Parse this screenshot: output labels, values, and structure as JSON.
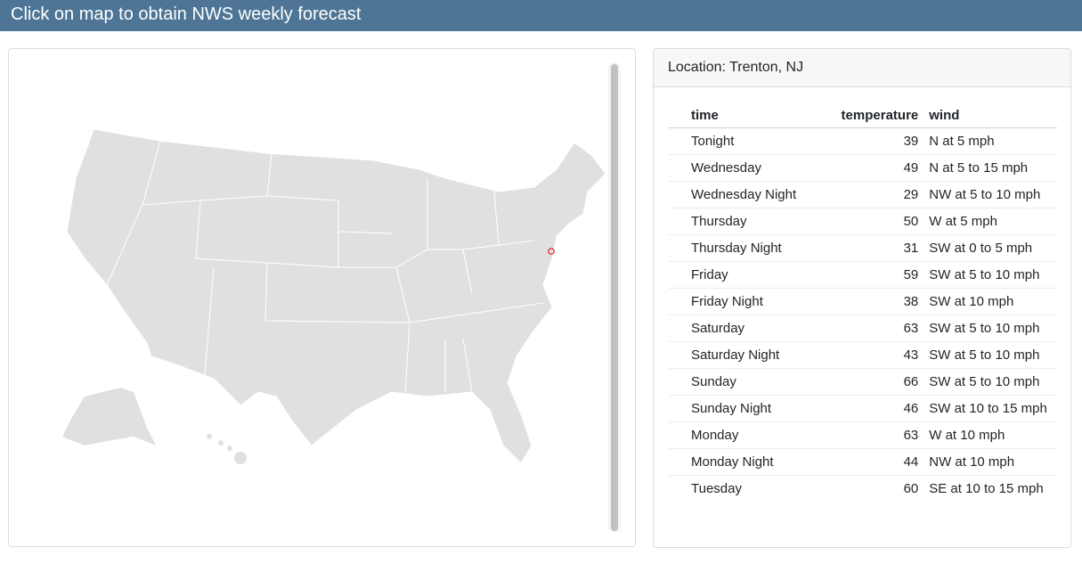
{
  "header": {
    "title": "Click on map to obtain NWS weekly forecast"
  },
  "map": {
    "marker": "Trenton, NJ",
    "marker_color": "#e41a1c",
    "fill": "#e0e0e0"
  },
  "forecast": {
    "location": "Location: Trenton, NJ",
    "columns": [
      "time",
      "temperature",
      "wind"
    ],
    "rows": [
      [
        "Tonight",
        "39",
        "N at 5 mph"
      ],
      [
        "Wednesday",
        "49",
        "N at 5 to 15 mph"
      ],
      [
        "Wednesday Night",
        "29",
        "NW at 5 to 10 mph"
      ],
      [
        "Thursday",
        "50",
        "W at 5 mph"
      ],
      [
        "Thursday Night",
        "31",
        "SW at 0 to 5 mph"
      ],
      [
        "Friday",
        "59",
        "SW at 5 to 10 mph"
      ],
      [
        "Friday Night",
        "38",
        "SW at 10 mph"
      ],
      [
        "Saturday",
        "63",
        "SW at 5 to 10 mph"
      ],
      [
        "Saturday Night",
        "43",
        "SW at 5 to 10 mph"
      ],
      [
        "Sunday",
        "66",
        "SW at 5 to 10 mph"
      ],
      [
        "Sunday Night",
        "46",
        "SW at 10 to 15 mph"
      ],
      [
        "Monday",
        "63",
        "W at 10 mph"
      ],
      [
        "Monday Night",
        "44",
        "NW at 10 mph"
      ],
      [
        "Tuesday",
        "60",
        "SE at 10 to 15 mph"
      ]
    ]
  }
}
